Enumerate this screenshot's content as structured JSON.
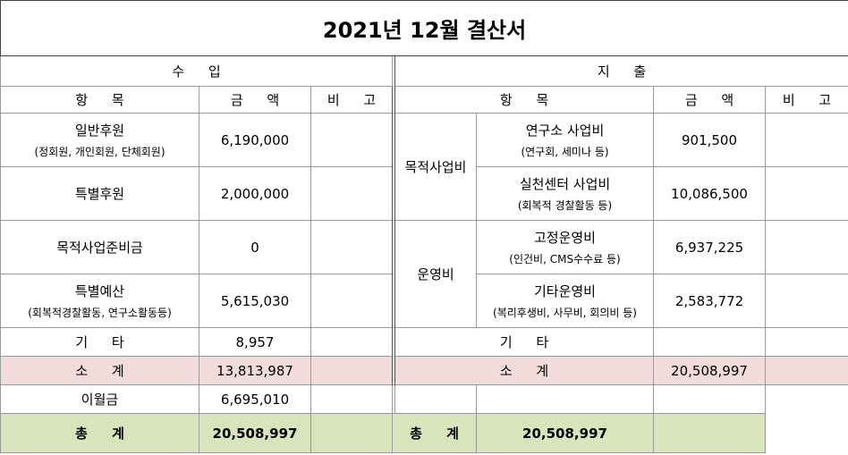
{
  "title": "2021년 12월 결산서",
  "income": {
    "heading": "수 입",
    "columns": [
      "항 목",
      "금 액",
      "비 고"
    ],
    "rows": [
      {
        "item": "일반후원",
        "sub": "(정회원, 개인회원, 단체회원)",
        "amount": "6,190,000"
      },
      {
        "item": "특별후원",
        "amount": "2,000,000"
      },
      {
        "item": "목적사업준비금",
        "amount": "0"
      },
      {
        "item": "특별예산",
        "sub": "(회복적경찰활동, 연구소활동등)",
        "amount": "5,615,030"
      },
      {
        "item": "기 타",
        "amount": "8,957"
      }
    ],
    "subtotal": {
      "label": "소 계",
      "amount": "13,813,987"
    },
    "carryover": {
      "label": "이월금",
      "amount": "6,695,010"
    },
    "total": {
      "label": "총 계",
      "amount": "20,508,997"
    }
  },
  "expense": {
    "heading": "지 출",
    "columns": [
      "항 목",
      "금 액",
      "비 고"
    ],
    "groups": [
      {
        "category": "목적사업비",
        "items": [
          {
            "item": "연구소 사업비",
            "sub": "(연구회, 세미나 등)",
            "amount": "901,500"
          },
          {
            "item": "실천센터 사업비",
            "sub": "(회복적 경찰활동 등)",
            "amount": "10,086,500"
          }
        ]
      },
      {
        "category": "운영비",
        "items": [
          {
            "item": "고정운영비",
            "sub": "(인건비, CMS수수료 등)",
            "amount": "6,937,225"
          },
          {
            "item": "기타운영비",
            "sub": "(복리후생비, 사무비, 회의비 등)",
            "amount": "2,583,772"
          }
        ]
      }
    ],
    "other": {
      "label": "기 타"
    },
    "subtotal": {
      "label": "소 계",
      "amount": "20,508,997"
    },
    "total": {
      "label": "총 계",
      "amount": "20,508,997"
    }
  }
}
